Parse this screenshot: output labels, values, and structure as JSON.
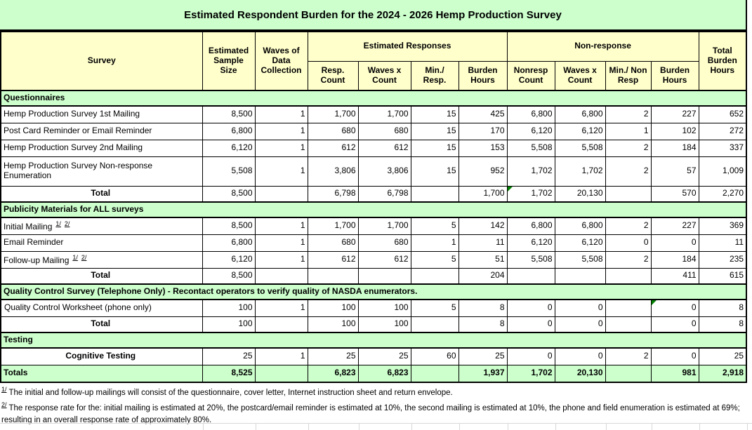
{
  "title": "Estimated Respondent Burden for the 2024 - 2026 Hemp Production Survey",
  "colors": {
    "title_bg": "#CCFFCC",
    "section_bg": "#CCFFCC",
    "header_bg": "#FFFFCC",
    "grand_total_bg": "#CCFFCC",
    "border": "#000000",
    "comment_flag": "#008000"
  },
  "header": {
    "survey": "Survey",
    "sample_size": "Estimated Sample Size",
    "waves": "Waves of Data Collection",
    "est_responses_group": "Estimated Responses",
    "nonresponse_group": "Non-response",
    "total_burden": "Total Burden Hours",
    "sub": [
      "Resp. Count",
      "Waves x Count",
      "Min./ Resp.",
      "Burden Hours",
      "Nonresp Count",
      "Waves x Count",
      "Min./ Non Resp",
      "Burden Hours"
    ]
  },
  "table": {
    "rows": [
      {
        "type": "section",
        "label": "Questionnaires"
      },
      {
        "type": "data",
        "label": "Hemp Production Survey 1st Mailing",
        "values": [
          "8,500",
          "1",
          "1,700",
          "1,700",
          "15",
          "425",
          "6,800",
          "6,800",
          "2",
          "227",
          "652"
        ]
      },
      {
        "type": "data",
        "label": "Post Card Reminder or Email Reminder",
        "values": [
          "6,800",
          "1",
          "680",
          "680",
          "15",
          "170",
          "6,120",
          "6,120",
          "1",
          "102",
          "272"
        ]
      },
      {
        "type": "data",
        "label": "Hemp Production Survey 2nd Mailing",
        "values": [
          "6,120",
          "1",
          "612",
          "612",
          "15",
          "153",
          "5,508",
          "5,508",
          "2",
          "184",
          "337"
        ]
      },
      {
        "type": "data",
        "label": "Hemp Production Survey Non-response Enumeration",
        "tall": true,
        "values": [
          "5,508",
          "1",
          "3,806",
          "3,806",
          "15",
          "952",
          "1,702",
          "1,702",
          "2",
          "57",
          "1,009"
        ]
      },
      {
        "type": "total",
        "label": "Total",
        "values": [
          "8,500",
          "",
          "6,798",
          "6,798",
          "",
          "1,700",
          "1,702",
          "20,130",
          "",
          "570",
          "2,270"
        ],
        "flags": [
          6
        ]
      },
      {
        "type": "section",
        "label": "Publicity Materials for ALL surveys"
      },
      {
        "type": "data",
        "label": "Initial Mailing",
        "sup": [
          "1/",
          "2/"
        ],
        "values": [
          "8,500",
          "1",
          "1,700",
          "1,700",
          "5",
          "142",
          "6,800",
          "6,800",
          "2",
          "227",
          "369"
        ]
      },
      {
        "type": "data",
        "label": "Email Reminder",
        "values": [
          "6,800",
          "1",
          "680",
          "680",
          "1",
          "11",
          "6,120",
          "6,120",
          "0",
          "0",
          "11"
        ]
      },
      {
        "type": "data",
        "label": "Follow-up Mailing",
        "sup": [
          "1/",
          "2/"
        ],
        "values": [
          "6,120",
          "1",
          "612",
          "612",
          "5",
          "51",
          "5,508",
          "5,508",
          "2",
          "184",
          "235"
        ]
      },
      {
        "type": "total",
        "label": "Total",
        "values": [
          "8,500",
          "",
          "",
          "",
          "",
          "204",
          "",
          "",
          "",
          "411",
          "615"
        ]
      },
      {
        "type": "section",
        "label": "Quality Control Survey (Telephone Only) - Recontact operators to verify quality of NASDA enumerators."
      },
      {
        "type": "data",
        "label": "Quality Control Worksheet (phone only)",
        "noindent": true,
        "values": [
          "100",
          "1",
          "100",
          "100",
          "5",
          "8",
          "0",
          "0",
          "",
          "0",
          "8"
        ],
        "flags": [
          9
        ]
      },
      {
        "type": "total",
        "label": "Total",
        "values": [
          "100",
          "",
          "100",
          "100",
          "",
          "8",
          "0",
          "0",
          "",
          "0",
          "8"
        ]
      },
      {
        "type": "section",
        "label": "Testing"
      },
      {
        "type": "data",
        "label": "Cognitive Testing",
        "center": true,
        "values": [
          "25",
          "1",
          "25",
          "25",
          "60",
          "25",
          "0",
          "0",
          "2",
          "0",
          "25"
        ]
      },
      {
        "type": "grand",
        "label": "Totals",
        "values": [
          "8,525",
          "",
          "6,823",
          "6,823",
          "",
          "1,937",
          "1,702",
          "20,130",
          "",
          "981",
          "2,918"
        ]
      }
    ]
  },
  "footnotes": [
    {
      "marker": "1/",
      "text": "The initial and follow-up mailings will consist of the questionnaire, cover letter, Internet instruction sheet and return envelope."
    },
    {
      "marker": "2/",
      "text": "The response rate for the: initial mailing is estimated at 20%, the postcard/email reminder is estimated at 10%, the second mailing is estimated at 10%, the phone and field enumeration is estimated at 69%; resulting in an overall response rate of approximately 80%."
    }
  ]
}
